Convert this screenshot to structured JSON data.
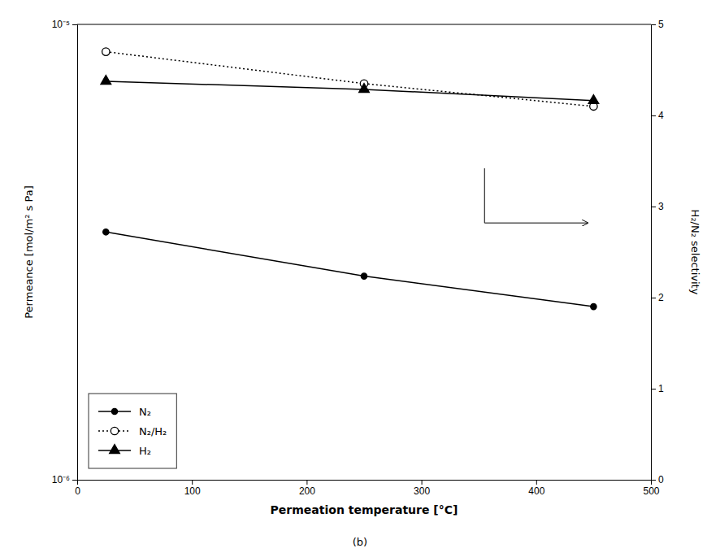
{
  "chart_data": {
    "type": "line",
    "x": [
      25,
      250,
      450
    ],
    "series": [
      {
        "name": "N₂",
        "color": "black",
        "values": [
          3.5e-06,
          2.8e-06,
          2.4e-06
        ],
        "marker": "circle",
        "line_style": "solid",
        "axis": "y"
      },
      {
        "name": "N₂/H₂",
        "color": "black",
        "values": [
          4.7,
          4.35,
          4.1
        ],
        "marker": "open-circle",
        "line_style": "dotted",
        "axis": "y2"
      },
      {
        "name": "H₂",
        "color": "black",
        "values": [
          7.5e-06,
          7.2e-06,
          6.8e-06
        ],
        "marker": "triangle",
        "line_style": "solid",
        "axis": "y"
      }
    ],
    "x_label": "Permeation temperature [°C]",
    "y_label": "Permeance [mol/m² s Pa]",
    "y2_label": "H₂/N₂ selectivity",
    "subtitle": "(b)",
    "xlim": [
      0,
      500
    ],
    "xticks": [
      0,
      100,
      200,
      300,
      400,
      500
    ],
    "ylim": [
      1e-06,
      1e-05
    ],
    "yticks": [
      {
        "value": 1e-06,
        "label": "10⁻⁶"
      },
      {
        "value": 1e-05,
        "label": "10⁻⁵"
      }
    ],
    "log": "y",
    "y2lim": [
      0,
      5
    ],
    "y2ticks": [
      0,
      1,
      2,
      3,
      4,
      5
    ],
    "annotations": [
      {
        "type": "arrow",
        "x": [
          355,
          355,
          445
        ],
        "y": [
          3.42,
          2.82,
          2.82
        ],
        "axis": "y2"
      }
    ],
    "legend": "lower left",
    "grid": false
  }
}
